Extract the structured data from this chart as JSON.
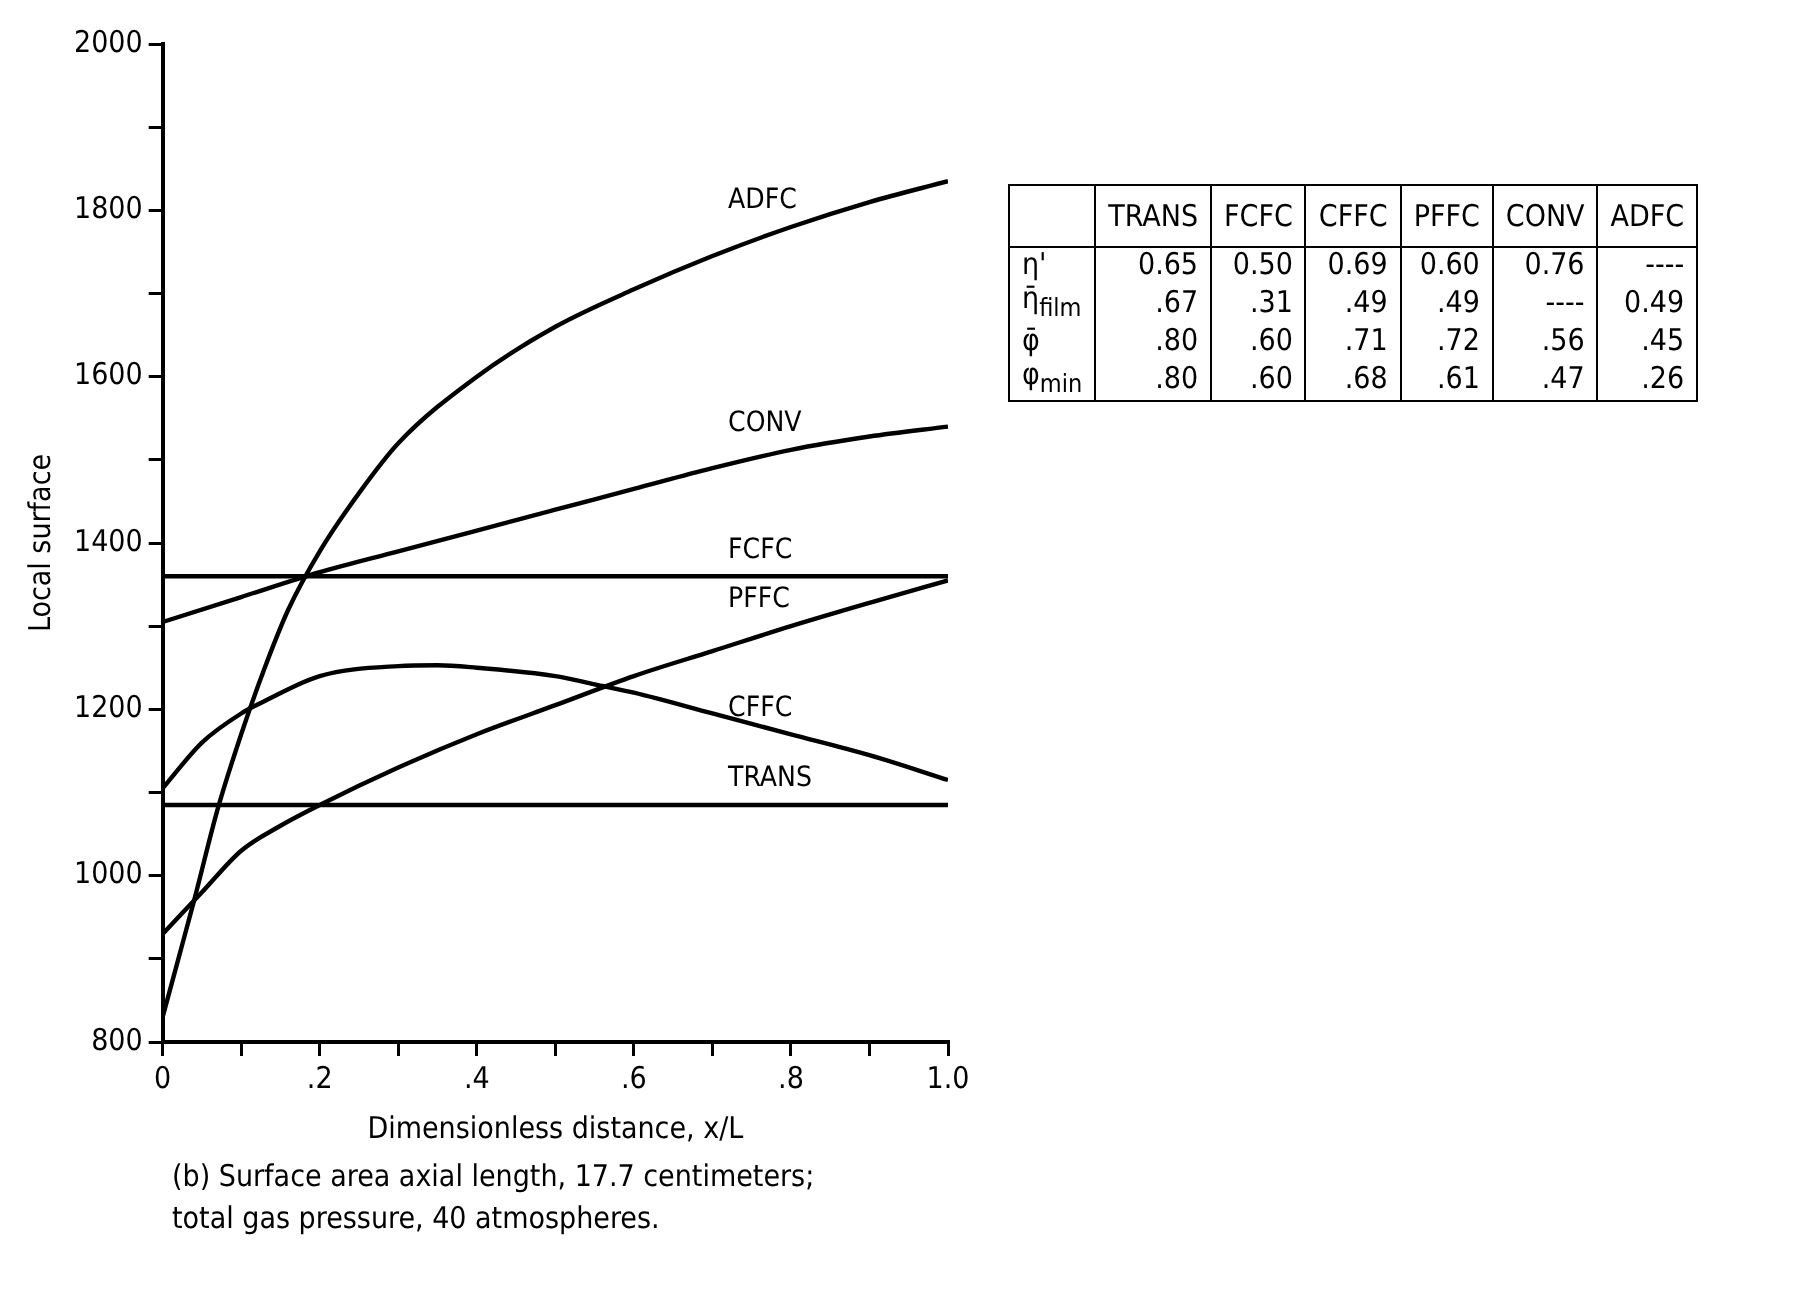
{
  "chart_data": [
    {
      "type": "line",
      "ylabel": "Local surface",
      "xlabel": "Dimensionless distance, x/L",
      "xlim": [
        0,
        1.0
      ],
      "ylim": [
        800,
        2000
      ],
      "xticks": [
        {
          "value": 0,
          "label": "0"
        },
        {
          "value": 0.1,
          "label": null
        },
        {
          "value": 0.2,
          "label": ".2"
        },
        {
          "value": 0.3,
          "label": null
        },
        {
          "value": 0.4,
          "label": ".4"
        },
        {
          "value": 0.5,
          "label": null
        },
        {
          "value": 0.6,
          "label": ".6"
        },
        {
          "value": 0.7,
          "label": null
        },
        {
          "value": 0.8,
          "label": ".8"
        },
        {
          "value": 0.9,
          "label": null
        },
        {
          "value": 1.0,
          "label": "1.0"
        }
      ],
      "yticks": [
        800,
        {
          "value": 900,
          "label": null
        },
        1000,
        {
          "value": 1100,
          "label": null
        },
        1200,
        {
          "value": 1300,
          "label": null
        },
        1400,
        {
          "value": 1500,
          "label": null
        },
        1600,
        {
          "value": 1700,
          "label": null
        },
        1800,
        {
          "value": 1900,
          "label": null
        },
        2000
      ],
      "grid": false,
      "legend": false,
      "marker": "none",
      "line_style": "solid",
      "series": [
        {
          "name": "ADFC",
          "color": "#000000",
          "x": [
            0,
            0.02,
            0.04,
            0.07,
            0.1,
            0.13,
            0.16,
            0.2,
            0.25,
            0.3,
            0.4,
            0.5,
            0.6,
            0.7,
            0.8,
            0.9,
            1.0
          ],
          "values": [
            830,
            900,
            970,
            1080,
            1170,
            1250,
            1320,
            1390,
            1460,
            1520,
            1600,
            1660,
            1705,
            1745,
            1780,
            1810,
            1835
          ]
        },
        {
          "name": "CONV",
          "color": "#000000",
          "x": [
            0,
            0.1,
            0.2,
            0.3,
            0.4,
            0.5,
            0.6,
            0.7,
            0.8,
            0.9,
            1.0
          ],
          "values": [
            1305,
            1335,
            1365,
            1390,
            1415,
            1440,
            1465,
            1490,
            1512,
            1528,
            1540
          ]
        },
        {
          "name": "FCFC",
          "color": "#000000",
          "x": [
            0,
            1.0
          ],
          "values": [
            1360,
            1360
          ]
        },
        {
          "name": "PFFC",
          "color": "#000000",
          "x": [
            0,
            0.05,
            0.1,
            0.15,
            0.2,
            0.3,
            0.4,
            0.5,
            0.6,
            0.7,
            0.8,
            0.9,
            1.0
          ],
          "values": [
            930,
            980,
            1030,
            1060,
            1085,
            1130,
            1170,
            1205,
            1240,
            1270,
            1300,
            1328,
            1355
          ]
        },
        {
          "name": "CFFC",
          "color": "#000000",
          "x": [
            0,
            0.05,
            0.1,
            0.13,
            0.2,
            0.3,
            0.35,
            0.4,
            0.5,
            0.55,
            0.6,
            0.7,
            0.8,
            0.9,
            1.0
          ],
          "values": [
            1105,
            1160,
            1195,
            1210,
            1240,
            1252,
            1253,
            1250,
            1240,
            1230,
            1220,
            1195,
            1170,
            1145,
            1115
          ]
        },
        {
          "name": "TRANS",
          "color": "#000000",
          "x": [
            0,
            1.0
          ],
          "values": [
            1085,
            1085
          ]
        }
      ],
      "annotations": [
        "(b) Surface area axial length, 17.7 centimeters; total gas pressure, 40 atmospheres."
      ]
    },
    {
      "type": "other",
      "categories": [
        "TRANS",
        "FCFC",
        "CFFC",
        "PFFC",
        "CONV",
        "ADFC"
      ],
      "y_categories": [
        "η'",
        "η̄$_{film}$",
        "φ̄",
        "φ$_{min}$"
      ],
      "cell_labels": [
        [
          "0.65",
          "0.50",
          "0.69",
          "0.60",
          "0.76",
          "----"
        ],
        [
          ".67",
          ".31",
          ".49",
          ".49",
          "----",
          "0.49"
        ],
        [
          ".80",
          ".60",
          ".71",
          ".72",
          ".56",
          ".45"
        ],
        [
          ".80",
          ".60",
          ".68",
          ".61",
          ".47",
          ".26"
        ]
      ]
    }
  ]
}
